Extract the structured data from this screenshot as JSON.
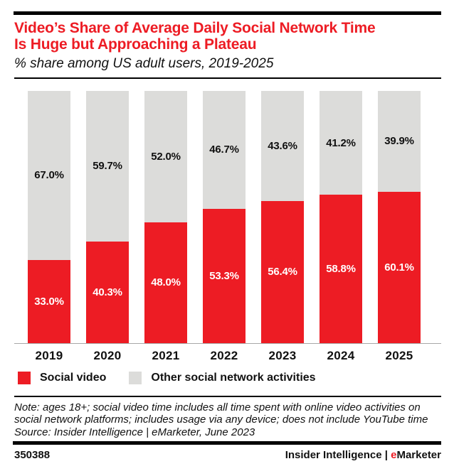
{
  "header": {
    "title_line1": "Video’s Share of Average Daily Social Network Time",
    "title_line2": "Is Huge but Approaching a Plateau",
    "subtitle": "% share among US adult users, 2019-2025"
  },
  "chart_data": {
    "type": "bar",
    "stacked": true,
    "title": "Video’s Share of Average Daily Social Network Time Is Huge but Approaching a Plateau",
    "subtitle": "% share among US adult users, 2019-2025",
    "categories": [
      "2019",
      "2020",
      "2021",
      "2022",
      "2023",
      "2024",
      "2025"
    ],
    "series": [
      {
        "name": "Social video",
        "color": "#ed1c24",
        "label_color": "#ffffff",
        "values": [
          33.0,
          40.3,
          48.0,
          53.3,
          56.4,
          58.8,
          60.1
        ],
        "labels": [
          "33.0%",
          "40.3%",
          "48.0%",
          "53.3%",
          "56.4%",
          "58.8%",
          "60.1%"
        ]
      },
      {
        "name": "Other social network activities",
        "color": "#dcdcda",
        "label_color": "#111111",
        "values": [
          67.0,
          59.7,
          52.0,
          46.7,
          43.6,
          41.2,
          39.9
        ],
        "labels": [
          "67.0%",
          "59.7%",
          "52.0%",
          "46.7%",
          "43.6%",
          "41.2%",
          "39.9%"
        ]
      }
    ],
    "ylim": [
      0,
      100
    ],
    "grid": false,
    "legend_position": "bottom",
    "value_label_placement": "centered-in-segment"
  },
  "legend": {
    "items": [
      {
        "label": "Social video",
        "color": "#ed1c24"
      },
      {
        "label": "Other social network activities",
        "color": "#dcdcda"
      }
    ]
  },
  "footnote": {
    "note": "Note: ages 18+; social video time includes all time spent with online video activities on social network platforms; includes usage via any device; does not include YouTube time",
    "source": "Source: Insider Intelligence | eMarketer, June 2023"
  },
  "footer": {
    "chart_id": "350388",
    "attribution": "Insider Intelligence",
    "separator": " | ",
    "brand_e": "e",
    "brand_rest": "Marketer"
  },
  "colors": {
    "accent_red": "#ed1c24",
    "bar_gray": "#dcdcda",
    "rule_black": "#000000",
    "axis_gray": "#a8a8a8"
  }
}
